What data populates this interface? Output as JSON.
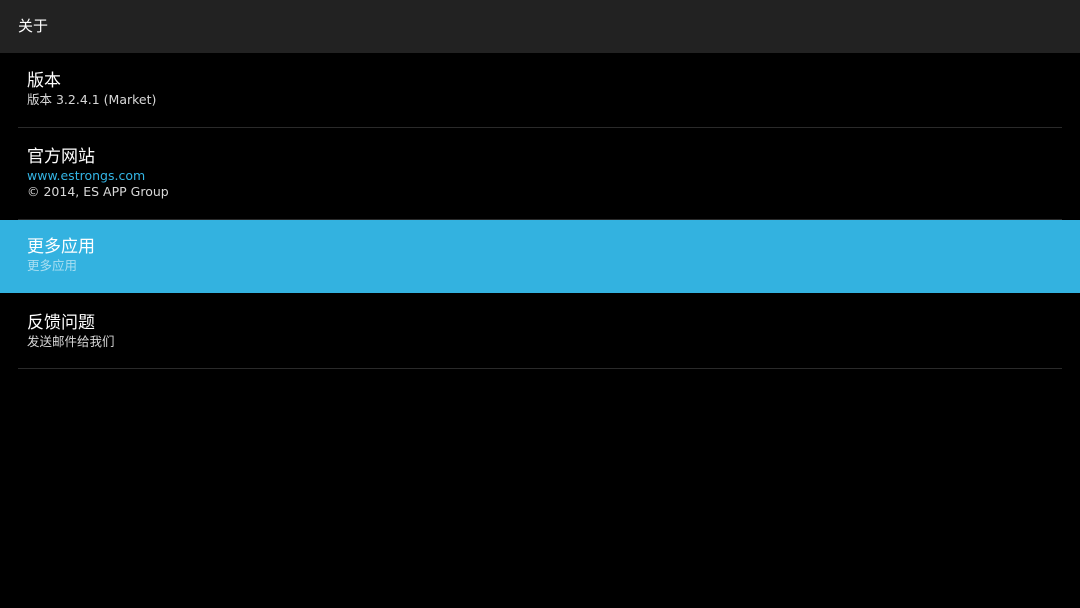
{
  "header": {
    "title": "关于"
  },
  "items": [
    {
      "title": "版本",
      "subtitle": "版本 3.2.4.1 (Market)"
    },
    {
      "title": "官方网站",
      "link": "www.estrongs.com",
      "subtitle": "© 2014, ES APP Group"
    },
    {
      "title": "更多应用",
      "subtitle": "更多应用",
      "selected": true
    },
    {
      "title": "反馈问题",
      "subtitle": "发送邮件给我们"
    }
  ],
  "colors": {
    "title_bar": "#222222",
    "background": "#000000",
    "accent": "#33b2e0",
    "link": "#33b5e5"
  }
}
